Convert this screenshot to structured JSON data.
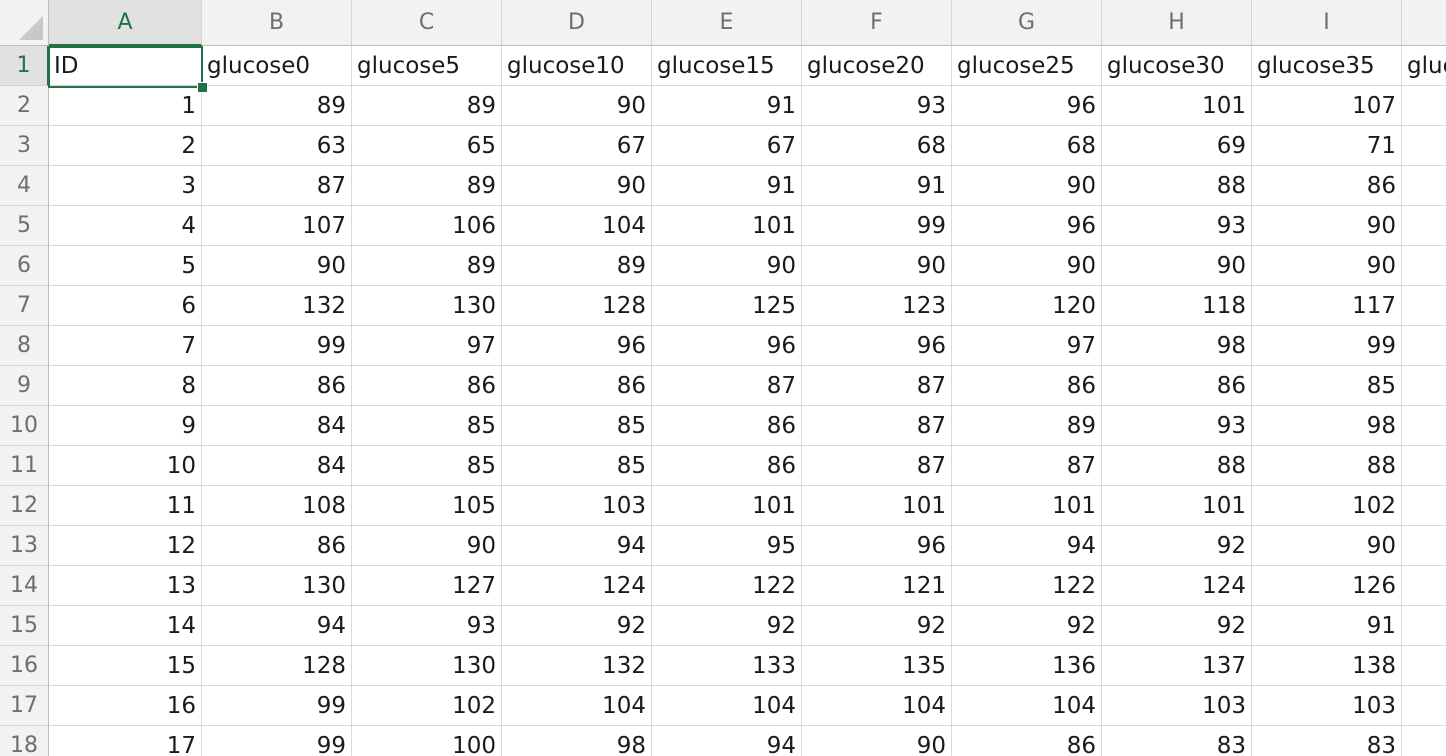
{
  "spreadsheet": {
    "columns": [
      "A",
      "B",
      "C",
      "D",
      "E",
      "F",
      "G",
      "H",
      "I",
      ""
    ],
    "selected_column": "A",
    "selected_row": "1",
    "rows": [
      {
        "num": "1",
        "cells": [
          "ID",
          "glucose0",
          "glucose5",
          "glucose10",
          "glucose15",
          "glucose20",
          "glucose25",
          "glucose30",
          "glucose35",
          "gluc"
        ]
      },
      {
        "num": "2",
        "cells": [
          "1",
          "89",
          "89",
          "90",
          "91",
          "93",
          "96",
          "101",
          "107",
          ""
        ]
      },
      {
        "num": "3",
        "cells": [
          "2",
          "63",
          "65",
          "67",
          "67",
          "68",
          "68",
          "69",
          "71",
          ""
        ]
      },
      {
        "num": "4",
        "cells": [
          "3",
          "87",
          "89",
          "90",
          "91",
          "91",
          "90",
          "88",
          "86",
          ""
        ]
      },
      {
        "num": "5",
        "cells": [
          "4",
          "107",
          "106",
          "104",
          "101",
          "99",
          "96",
          "93",
          "90",
          ""
        ]
      },
      {
        "num": "6",
        "cells": [
          "5",
          "90",
          "89",
          "89",
          "90",
          "90",
          "90",
          "90",
          "90",
          ""
        ]
      },
      {
        "num": "7",
        "cells": [
          "6",
          "132",
          "130",
          "128",
          "125",
          "123",
          "120",
          "118",
          "117",
          ""
        ]
      },
      {
        "num": "8",
        "cells": [
          "7",
          "99",
          "97",
          "96",
          "96",
          "96",
          "97",
          "98",
          "99",
          ""
        ]
      },
      {
        "num": "9",
        "cells": [
          "8",
          "86",
          "86",
          "86",
          "87",
          "87",
          "86",
          "86",
          "85",
          ""
        ]
      },
      {
        "num": "10",
        "cells": [
          "9",
          "84",
          "85",
          "85",
          "86",
          "87",
          "89",
          "93",
          "98",
          ""
        ]
      },
      {
        "num": "11",
        "cells": [
          "10",
          "84",
          "85",
          "85",
          "86",
          "87",
          "87",
          "88",
          "88",
          ""
        ]
      },
      {
        "num": "12",
        "cells": [
          "11",
          "108",
          "105",
          "103",
          "101",
          "101",
          "101",
          "101",
          "102",
          ""
        ]
      },
      {
        "num": "13",
        "cells": [
          "12",
          "86",
          "90",
          "94",
          "95",
          "96",
          "94",
          "92",
          "90",
          ""
        ]
      },
      {
        "num": "14",
        "cells": [
          "13",
          "130",
          "127",
          "124",
          "122",
          "121",
          "122",
          "124",
          "126",
          ""
        ]
      },
      {
        "num": "15",
        "cells": [
          "14",
          "94",
          "93",
          "92",
          "92",
          "92",
          "92",
          "92",
          "91",
          ""
        ]
      },
      {
        "num": "16",
        "cells": [
          "15",
          "128",
          "130",
          "132",
          "133",
          "135",
          "136",
          "137",
          "138",
          ""
        ]
      },
      {
        "num": "17",
        "cells": [
          "16",
          "99",
          "102",
          "104",
          "104",
          "104",
          "104",
          "103",
          "103",
          ""
        ]
      },
      {
        "num": "18",
        "cells": [
          "17",
          "99",
          "100",
          "98",
          "94",
          "90",
          "86",
          "83",
          "83",
          ""
        ]
      }
    ]
  }
}
